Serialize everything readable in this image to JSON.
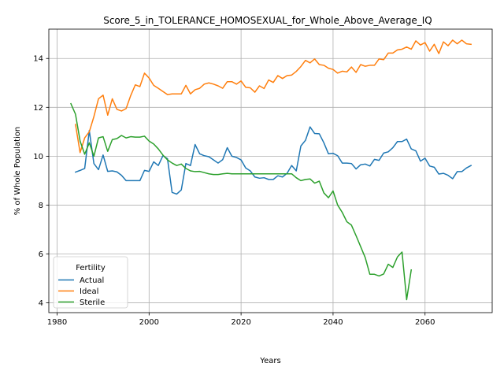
{
  "chart_data": {
    "type": "line",
    "title": "Score_5_in_TOLERANCE_HOMOSEXUAL_for_Whole_Above_Average_IQ",
    "xlabel": "Years",
    "ylabel": "% of Whole Population",
    "xlim": [
      1978.2,
      2074.6
    ],
    "ylim": [
      3.6,
      15.2
    ],
    "xticks": [
      1980,
      2000,
      2020,
      2040,
      2060
    ],
    "yticks": [
      4,
      6,
      8,
      10,
      12,
      14
    ],
    "grid": true,
    "legend": {
      "title": "Fertility",
      "placement": "lower-left"
    },
    "series": [
      {
        "name": "Actual",
        "color": "#1f77b4",
        "x": [
          1984,
          1985,
          1986,
          1987,
          1988,
          1989,
          1990,
          1991,
          1992,
          1993,
          1994,
          1995,
          1996,
          1997,
          1998,
          1999,
          2000,
          2001,
          2002,
          2003,
          2004,
          2005,
          2006,
          2007,
          2008,
          2009,
          2010,
          2011,
          2012,
          2013,
          2014,
          2015,
          2016,
          2017,
          2018,
          2019,
          2020,
          2021,
          2022,
          2023,
          2024,
          2025,
          2026,
          2027,
          2028,
          2029,
          2030,
          2031,
          2032,
          2033,
          2034,
          2035,
          2036,
          2037,
          2038,
          2039,
          2040,
          2041,
          2042,
          2043,
          2044,
          2045,
          2046,
          2047,
          2048,
          2049,
          2050,
          2051,
          2052,
          2053,
          2054,
          2055,
          2056,
          2057,
          2058,
          2059,
          2060,
          2061,
          2062,
          2063,
          2064,
          2065,
          2066,
          2067,
          2068,
          2069,
          2070
        ],
        "values": [
          9.35,
          9.42,
          9.5,
          11.05,
          9.7,
          9.45,
          10.05,
          9.38,
          9.4,
          9.36,
          9.22,
          9.0,
          9.0,
          9.0,
          9.0,
          9.42,
          9.38,
          9.77,
          9.62,
          10.02,
          9.9,
          8.52,
          8.45,
          8.62,
          9.7,
          9.62,
          10.48,
          10.1,
          10.02,
          9.98,
          9.85,
          9.72,
          9.86,
          10.35,
          10.0,
          9.95,
          9.85,
          9.52,
          9.4,
          9.15,
          9.1,
          9.12,
          9.05,
          9.05,
          9.2,
          9.15,
          9.3,
          9.62,
          9.4,
          10.42,
          10.65,
          11.2,
          10.93,
          10.92,
          10.55,
          10.1,
          10.12,
          10.02,
          9.72,
          9.72,
          9.7,
          9.48,
          9.65,
          9.68,
          9.6,
          9.87,
          9.83,
          10.13,
          10.18,
          10.35,
          10.6,
          10.6,
          10.7,
          10.3,
          10.22,
          9.8,
          9.92,
          9.6,
          9.55,
          9.27,
          9.3,
          9.22,
          9.08,
          9.37,
          9.37,
          9.52,
          9.62
        ]
      },
      {
        "name": "Ideal",
        "color": "#ff7f0e",
        "x": [
          1984,
          1985,
          1986,
          1987,
          1988,
          1989,
          1990,
          1991,
          1992,
          1993,
          1994,
          1995,
          1996,
          1997,
          1998,
          1999,
          2000,
          2001,
          2002,
          2003,
          2004,
          2005,
          2006,
          2007,
          2008,
          2009,
          2010,
          2011,
          2012,
          2013,
          2014,
          2015,
          2016,
          2017,
          2018,
          2019,
          2020,
          2021,
          2022,
          2023,
          2024,
          2025,
          2026,
          2027,
          2028,
          2029,
          2030,
          2031,
          2032,
          2033,
          2034,
          2035,
          2036,
          2037,
          2038,
          2039,
          2040,
          2041,
          2042,
          2043,
          2044,
          2045,
          2046,
          2047,
          2048,
          2049,
          2050,
          2051,
          2052,
          2053,
          2054,
          2055,
          2056,
          2057,
          2058,
          2059,
          2060,
          2061,
          2062,
          2063,
          2064,
          2065,
          2066,
          2067,
          2068,
          2069,
          2070
        ],
        "values": [
          11.3,
          10.15,
          10.75,
          11.0,
          11.62,
          12.35,
          12.5,
          11.68,
          12.35,
          11.92,
          11.85,
          11.95,
          12.48,
          12.92,
          12.85,
          13.4,
          13.2,
          12.9,
          12.78,
          12.65,
          12.52,
          12.55,
          12.55,
          12.55,
          12.9,
          12.55,
          12.72,
          12.78,
          12.95,
          13.0,
          12.95,
          12.88,
          12.78,
          13.05,
          13.05,
          12.95,
          13.08,
          12.82,
          12.8,
          12.62,
          12.88,
          12.77,
          13.12,
          13.02,
          13.3,
          13.18,
          13.3,
          13.32,
          13.47,
          13.67,
          13.92,
          13.82,
          13.98,
          13.75,
          13.72,
          13.6,
          13.55,
          13.4,
          13.48,
          13.45,
          13.65,
          13.43,
          13.75,
          13.68,
          13.72,
          13.72,
          13.98,
          13.95,
          14.22,
          14.22,
          14.35,
          14.38,
          14.47,
          14.38,
          14.72,
          14.55,
          14.65,
          14.3,
          14.58,
          14.2,
          14.68,
          14.52,
          14.75,
          14.6,
          14.75,
          14.6,
          14.58
        ]
      },
      {
        "name": "Sterile",
        "color": "#2ca02c",
        "x": [
          1983,
          1984,
          1985,
          1986,
          1987,
          1988,
          1989,
          1990,
          1991,
          1992,
          1993,
          1994,
          1995,
          1996,
          1997,
          1998,
          1999,
          2000,
          2001,
          2002,
          2003,
          2004,
          2005,
          2006,
          2007,
          2008,
          2009,
          2010,
          2011,
          2012,
          2013,
          2014,
          2015,
          2016,
          2017,
          2018,
          2019,
          2020,
          2021,
          2022,
          2023,
          2024,
          2025,
          2026,
          2027,
          2028,
          2029,
          2030,
          2031,
          2032,
          2033,
          2034,
          2035,
          2036,
          2037,
          2038,
          2039,
          2040,
          2041,
          2042,
          2043,
          2044,
          2045,
          2046,
          2047,
          2048,
          2049,
          2050,
          2051,
          2052,
          2053,
          2054,
          2055,
          2056,
          2057
        ],
        "values": [
          12.15,
          11.72,
          10.62,
          10.08,
          10.55,
          10.0,
          10.75,
          10.8,
          10.2,
          10.68,
          10.72,
          10.85,
          10.75,
          10.8,
          10.78,
          10.78,
          10.82,
          10.62,
          10.5,
          10.3,
          10.05,
          9.85,
          9.72,
          9.62,
          9.68,
          9.5,
          9.4,
          9.37,
          9.38,
          9.33,
          9.28,
          9.25,
          9.25,
          9.28,
          9.3,
          9.28,
          9.28,
          9.28,
          9.28,
          9.28,
          9.28,
          9.28,
          9.28,
          9.28,
          9.28,
          9.28,
          9.28,
          9.28,
          9.28,
          9.12,
          9.0,
          9.05,
          9.07,
          8.9,
          8.98,
          8.5,
          8.3,
          8.58,
          8.0,
          7.7,
          7.32,
          7.18,
          6.75,
          6.3,
          5.85,
          5.17,
          5.17,
          5.1,
          5.18,
          5.58,
          5.45,
          5.88,
          6.08,
          4.13,
          5.35
        ]
      }
    ]
  }
}
